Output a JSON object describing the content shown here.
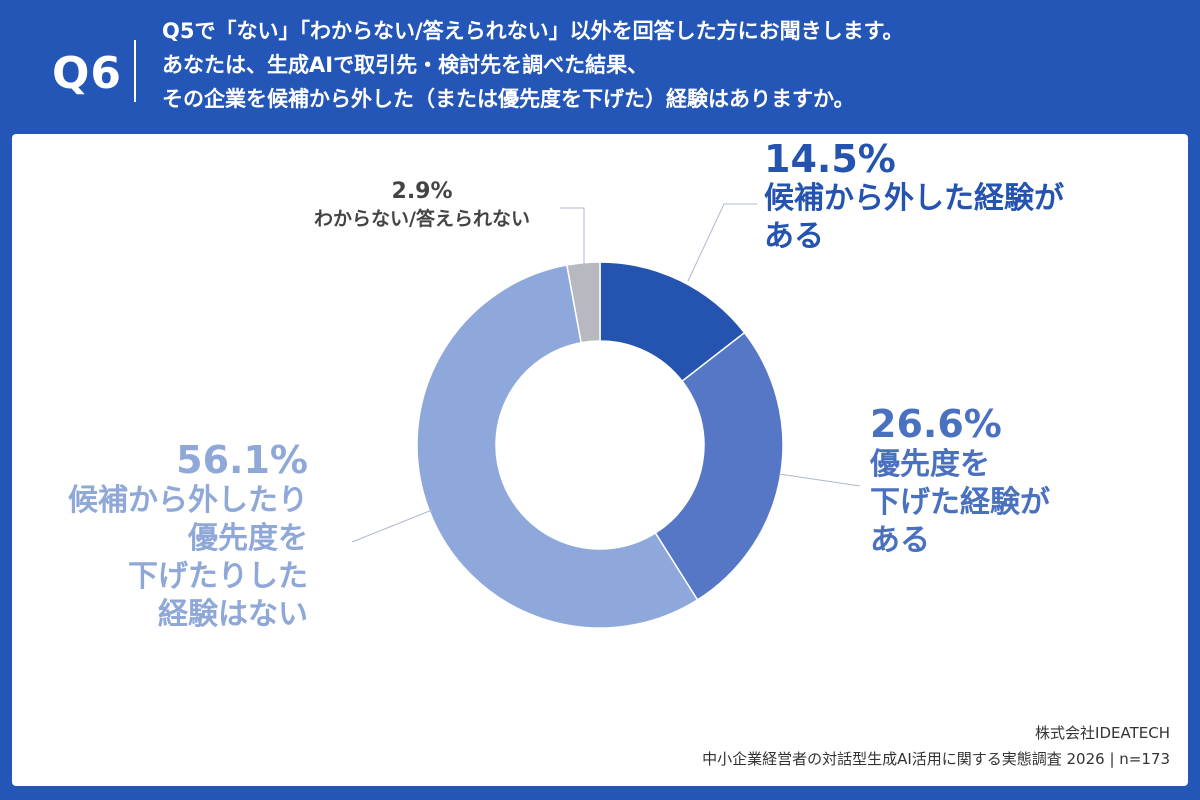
{
  "header": {
    "qnum": "Q6",
    "lines": [
      "Q5で「ない」「わからない/答えられない」以外を回答した方にお聞きします。",
      "あなたは、生成AIで取引先・検討先を調べた結果、",
      "その企業を候補から外した（または優先度を下げた）経験はありますか。"
    ]
  },
  "chart_data": {
    "type": "pie",
    "donut": true,
    "start_angle_deg": 0,
    "direction": "clockwise",
    "series": [
      {
        "name": "候補から外した経験がある",
        "value": 14.5,
        "label_pct": "14.5%",
        "label_lines": [
          "候補から外した経験が",
          "ある"
        ],
        "color": "#2453b0"
      },
      {
        "name": "優先度を下げた経験がある",
        "value": 26.6,
        "label_pct": "26.6%",
        "label_lines": [
          "優先度を",
          "下げた経験が",
          "ある"
        ],
        "color": "#5577c6"
      },
      {
        "name": "候補から外したり優先度を下げたりした経験はない",
        "value": 56.1,
        "label_pct": "56.1%",
        "label_lines": [
          "候補から外したり",
          "優先度を",
          "下げたりした",
          "経験はない"
        ],
        "color": "#8fa8dc"
      },
      {
        "name": "わからない/答えられない",
        "value": 2.9,
        "label_pct": "2.9%",
        "label_lines": [
          "わからない/答えられない"
        ],
        "color": "#b8b8c0"
      }
    ]
  },
  "footer": {
    "company": "株式会社IDEATECH",
    "source": "中小企業経営者の対話型生成AI活用に関する実態調査 2026 | n=173"
  }
}
